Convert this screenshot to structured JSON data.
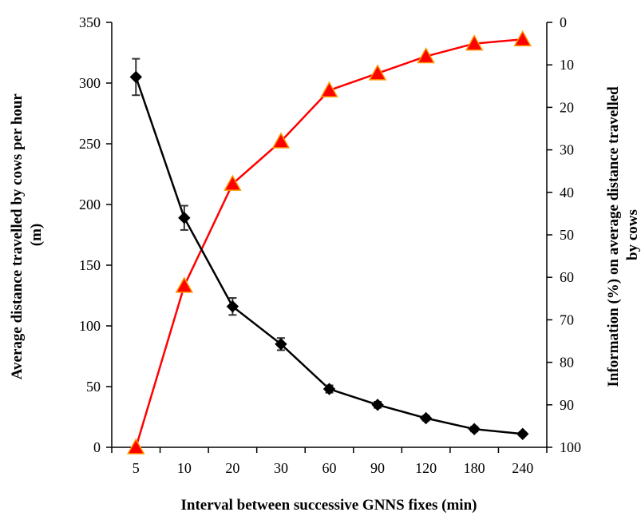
{
  "chart_data": {
    "type": "line",
    "categories": [
      "5",
      "10",
      "20",
      "30",
      "60",
      "90",
      "120",
      "180",
      "240"
    ],
    "xlabel": "Interval between successive GNNS fixes (min)",
    "ylabel": "Average distance travelled by cows per hour (m)",
    "ylabel_lines": [
      "Average distance travelled by cows per hour",
      "(m)"
    ],
    "y2label": "Information (%) on average distance travelled by cows",
    "y2label_lines": [
      "Information (%) on average distance travelled",
      "by cows"
    ],
    "ylim": [
      0,
      350
    ],
    "y2lim": [
      100,
      0
    ],
    "y2_inverted": true,
    "yticks": [
      0,
      50,
      100,
      150,
      200,
      250,
      300,
      350
    ],
    "y2ticks": [
      0,
      10,
      20,
      30,
      40,
      50,
      60,
      70,
      80,
      90,
      100
    ],
    "series": [
      {
        "axis": "left",
        "marker": "diamond",
        "color": "#000000",
        "values": [
          305,
          189,
          116,
          85,
          48,
          35,
          24,
          15,
          11
        ],
        "errors": [
          15,
          10,
          7,
          5,
          3,
          2.5,
          2,
          2,
          1.5
        ]
      },
      {
        "axis": "right",
        "marker": "triangle",
        "color": "#ff0000",
        "marker_color": "#ff0000",
        "marker_edge": "#ff9900",
        "values": [
          100,
          62,
          38,
          28,
          16,
          12,
          8,
          5,
          4
        ]
      }
    ],
    "grid": false,
    "legend": "none"
  }
}
